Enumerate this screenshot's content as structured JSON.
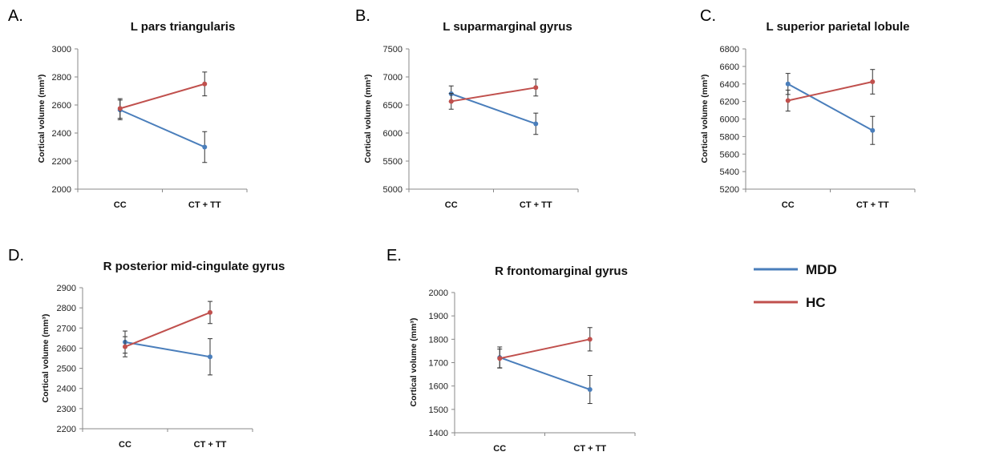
{
  "legend": {
    "items": [
      {
        "name": "MDD",
        "color": "#4a7ebb"
      },
      {
        "name": "HC",
        "color": "#c0504d"
      }
    ]
  },
  "chart_data": [
    {
      "type": "line",
      "letter": "A.",
      "title": "L pars triangularis",
      "ylabel": "Cortical volume (mm³)",
      "categories": [
        "CC",
        "CT + TT"
      ],
      "ylim": [
        2000,
        3000
      ],
      "yticks": [
        2000,
        2200,
        2400,
        2600,
        2800,
        3000
      ],
      "series": [
        {
          "name": "MDD",
          "values": [
            2565,
            2300
          ],
          "errors": [
            70,
            110
          ]
        },
        {
          "name": "HC",
          "values": [
            2575,
            2750
          ],
          "errors": [
            70,
            85
          ]
        }
      ]
    },
    {
      "type": "line",
      "letter": "B.",
      "title": "L suparmarginal gyrus",
      "ylabel": "Cortical volume (mm³)",
      "categories": [
        "CC",
        "CT + TT"
      ],
      "ylim": [
        5000,
        7500
      ],
      "yticks": [
        5000,
        5500,
        6000,
        6500,
        7000,
        7500
      ],
      "series": [
        {
          "name": "MDD",
          "values": [
            6700,
            6165
          ],
          "errors": [
            140,
            190
          ]
        },
        {
          "name": "HC",
          "values": [
            6565,
            6810
          ],
          "errors": [
            140,
            150
          ]
        }
      ]
    },
    {
      "type": "line",
      "letter": "C.",
      "title": "L superior parietal lobule",
      "ylabel": "Cortical volume (mm³)",
      "categories": [
        "CC",
        "CT + TT"
      ],
      "ylim": [
        5200,
        6800
      ],
      "yticks": [
        5200,
        5400,
        5600,
        5800,
        6000,
        6200,
        6400,
        6600,
        6800
      ],
      "series": [
        {
          "name": "MDD",
          "values": [
            6400,
            5870
          ],
          "errors": [
            120,
            160
          ]
        },
        {
          "name": "HC",
          "values": [
            6210,
            6425
          ],
          "errors": [
            120,
            140
          ]
        }
      ]
    },
    {
      "type": "line",
      "letter": "D.",
      "title": "R posterior mid-cingulate gyrus",
      "ylabel": "Cortical volume (mm³)",
      "categories": [
        "CC",
        "CT + TT"
      ],
      "ylim": [
        2200,
        2900
      ],
      "yticks": [
        2200,
        2300,
        2400,
        2500,
        2600,
        2700,
        2800,
        2900
      ],
      "series": [
        {
          "name": "MDD",
          "values": [
            2630,
            2557
          ],
          "errors": [
            55,
            90
          ]
        },
        {
          "name": "HC",
          "values": [
            2607,
            2777
          ],
          "errors": [
            50,
            55
          ]
        }
      ]
    },
    {
      "type": "line",
      "letter": "E.",
      "title": "R frontomarginal gyrus",
      "ylabel": "Cortical volume (mm³)",
      "categories": [
        "CC",
        "CT + TT"
      ],
      "ylim": [
        1400,
        2000
      ],
      "yticks": [
        1400,
        1500,
        1600,
        1700,
        1800,
        1900,
        2000
      ],
      "series": [
        {
          "name": "MDD",
          "values": [
            1722,
            1585
          ],
          "errors": [
            45,
            60
          ]
        },
        {
          "name": "HC",
          "values": [
            1718,
            1800
          ],
          "errors": [
            40,
            50
          ]
        }
      ]
    }
  ]
}
